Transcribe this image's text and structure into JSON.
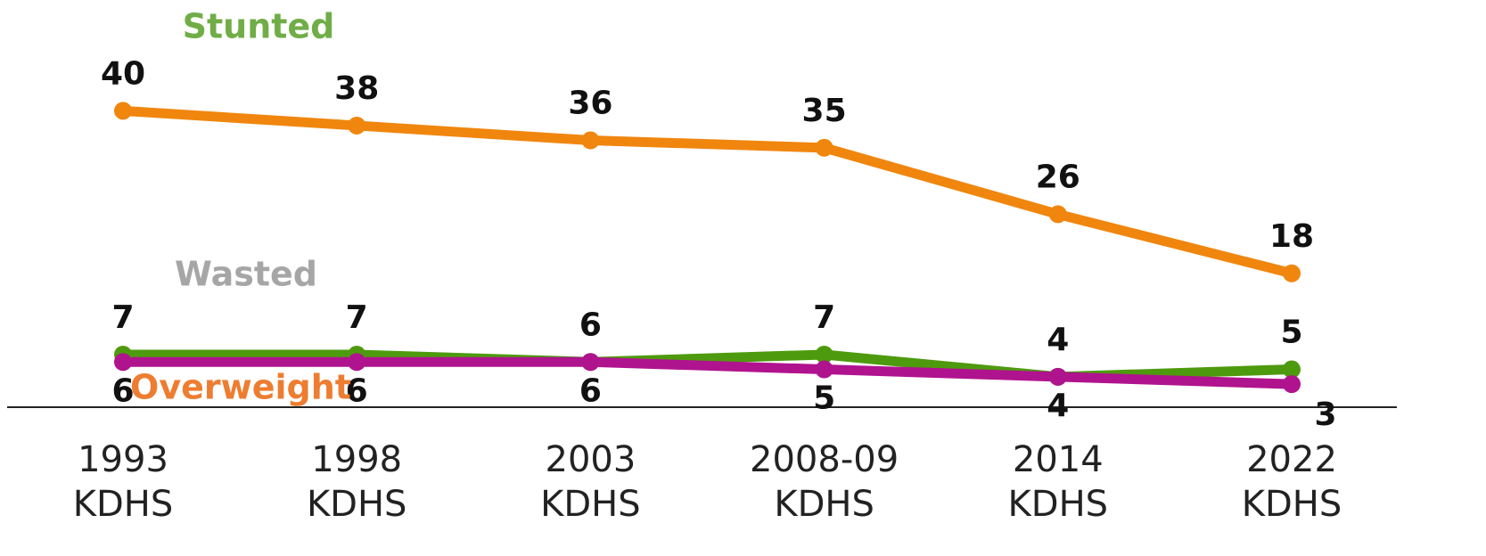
{
  "chart_data": {
    "type": "line",
    "categories": [
      "1993 KDHS",
      "1998 KDHS",
      "2003 KDHS",
      "2008-09 KDHS",
      "2014 KDHS",
      "2022 KDHS"
    ],
    "series": [
      {
        "name": "Stunted",
        "color": "#f0860e",
        "label_color": "#70ad47",
        "values": [
          40,
          38,
          36,
          35,
          26,
          18
        ]
      },
      {
        "name": "Wasted",
        "color": "#4e9a0e",
        "label_color": "#a6a6a6",
        "values": [
          7,
          7,
          6,
          7,
          4,
          5
        ]
      },
      {
        "name": "Overweight",
        "color": "#b0138e",
        "label_color": "#ed7d31",
        "values": [
          6,
          6,
          6,
          5,
          4,
          3
        ]
      }
    ],
    "ylim": [
      0,
      55
    ]
  }
}
